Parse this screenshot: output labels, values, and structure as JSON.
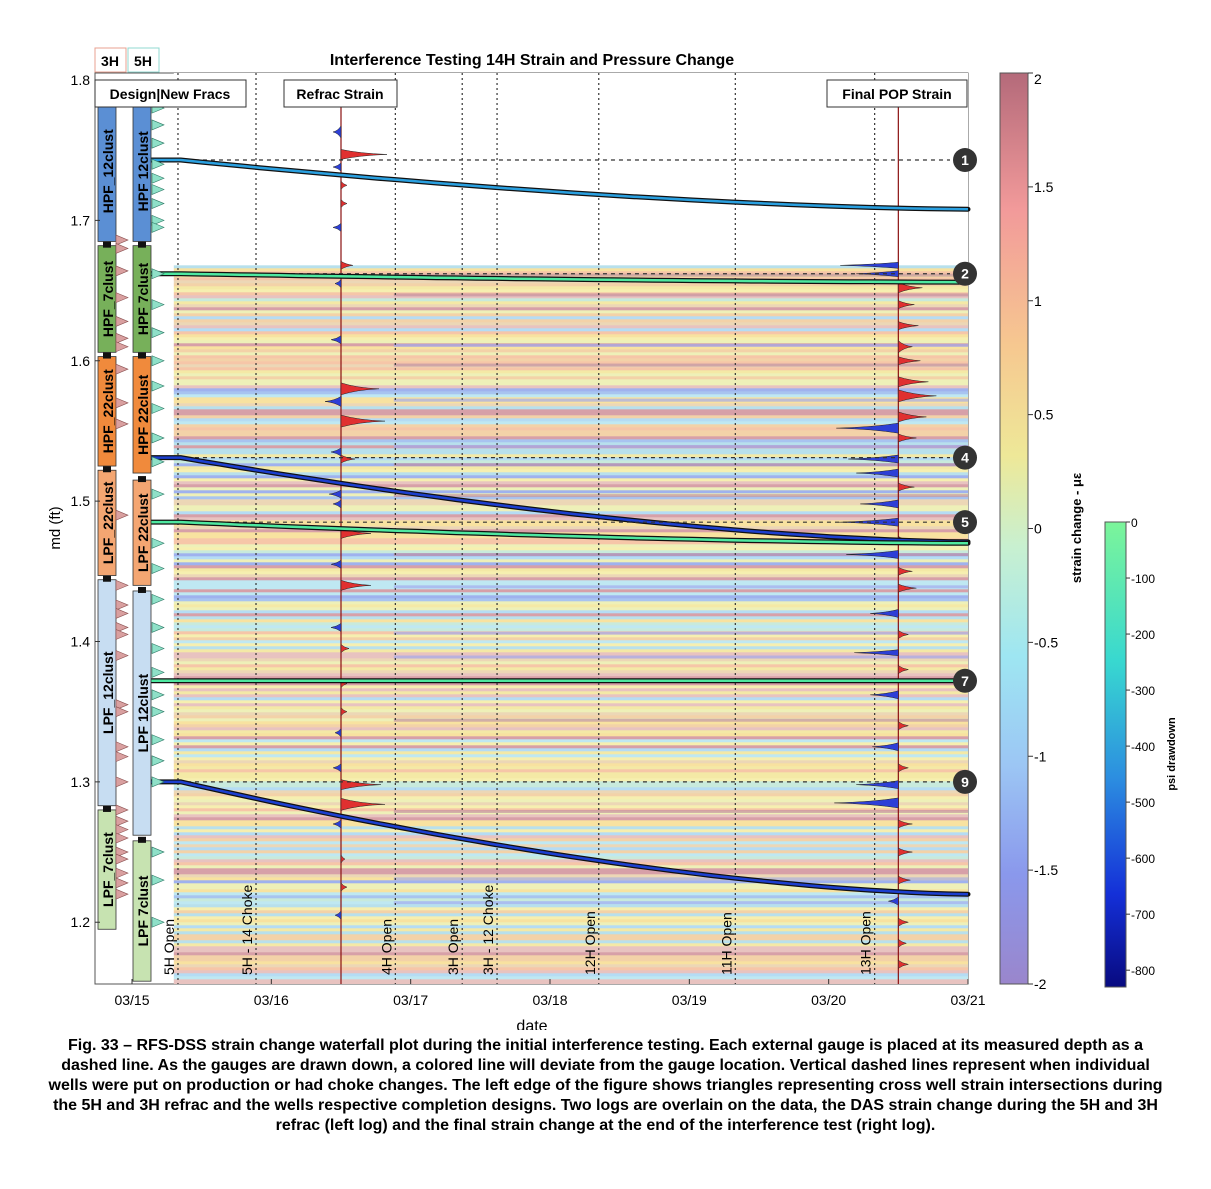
{
  "chart_data": {
    "type": "heatmap",
    "title": "Interference Testing 14H Strain and Pressure Change",
    "xlabel": "date",
    "ylabel": "md (ft)",
    "x_ticks": [
      "03/15",
      "03/16",
      "03/17",
      "03/18",
      "03/19",
      "03/20",
      "03/21"
    ],
    "y_ticks": [
      "1.2",
      "1.3",
      "1.4",
      "1.5",
      "1.6",
      "1.7",
      "1.8"
    ],
    "ylim": [
      1.156,
      1.805
    ],
    "grid": false,
    "well_headers": [
      "3H",
      "5H"
    ],
    "box_labels": {
      "design": "Design|New Fracs",
      "refrac": "Refrac Strain",
      "final": "Final POP Strain"
    },
    "events": [
      {
        "label": "5H Open",
        "day": 15.33
      },
      {
        "label": "5H - 14 Choke",
        "day": 15.89
      },
      {
        "label": "4H Open",
        "day": 16.89
      },
      {
        "label": "3H Open",
        "day": 17.37
      },
      {
        "label": "3H - 12 Choke",
        "day": 17.62
      },
      {
        "label": "12H Open",
        "day": 18.35
      },
      {
        "label": "11H Open",
        "day": 19.33
      },
      {
        "label": "13H Open",
        "day": 20.33
      }
    ],
    "gauges": [
      {
        "id": "1",
        "md": 1.743,
        "md_end": 1.708
      },
      {
        "id": "2",
        "md": 1.662,
        "md_end": 1.656
      },
      {
        "id": "4",
        "md": 1.531,
        "md_end": 1.471
      },
      {
        "id": "5",
        "md": 1.485,
        "md_end": 1.47
      },
      {
        "id": "7",
        "md": 1.372,
        "md_end": 1.372
      },
      {
        "id": "9",
        "md": 1.3,
        "md_end": 1.22
      }
    ],
    "strain_colorbar": {
      "label": "strain change - με",
      "ticks": [
        "2",
        "1.5",
        "1",
        "0.5",
        "0",
        "-0.5",
        "-1",
        "-1.5",
        "-2"
      ],
      "range": [
        -2,
        2
      ]
    },
    "pressure_colorbar": {
      "label": "psi drawdown",
      "ticks": [
        "0",
        "-100",
        "-200",
        "-300",
        "-400",
        "-500",
        "-600",
        "-700",
        "-800"
      ],
      "range": [
        -830,
        0
      ]
    },
    "design_3h": [
      {
        "label": "HPF_12clust",
        "top": 1.785,
        "bottom": 1.685,
        "color": "#5b8fd4"
      },
      {
        "label": "HPF_7clust",
        "top": 1.682,
        "bottom": 1.606,
        "color": "#77b05a"
      },
      {
        "label": "HPF_22clust",
        "top": 1.603,
        "bottom": 1.525,
        "color": "#f08a3c"
      },
      {
        "label": "LPF_22clust",
        "top": 1.522,
        "bottom": 1.447,
        "color": "#f4a672"
      },
      {
        "label": "LPF_12clust",
        "top": 1.444,
        "bottom": 1.283,
        "color": "#c7ddf2"
      },
      {
        "label": "LPF_7clust",
        "top": 1.28,
        "bottom": 1.195,
        "color": "#c7e3b1"
      }
    ],
    "design_5h": [
      {
        "label": "HPF 12clust",
        "top": 1.785,
        "bottom": 1.685,
        "color": "#5b8fd4"
      },
      {
        "label": "HPF 7clust",
        "top": 1.682,
        "bottom": 1.606,
        "color": "#77b05a"
      },
      {
        "label": "HPF 22clust",
        "top": 1.603,
        "bottom": 1.52,
        "color": "#f08a3c"
      },
      {
        "label": "LPF 22clust",
        "top": 1.515,
        "bottom": 1.44,
        "color": "#f4a672"
      },
      {
        "label": "LPF 12clust",
        "top": 1.436,
        "bottom": 1.262,
        "color": "#c7ddf2"
      },
      {
        "label": "LPF 7clust",
        "top": 1.258,
        "bottom": 1.158,
        "color": "#c7e3b1"
      }
    ]
  },
  "caption": "Fig. 33 – RFS-DSS strain change waterfall plot during the initial interference testing. Each external gauge is placed at its measured depth as a dashed line. As the gauges are drawn down, a colored line will deviate from the gauge location. Vertical dashed lines represent when individual wells were put on production or had choke changes. The left edge of the figure shows triangles representing cross well strain intersections during the 5H and 3H refrac and the wells respective completion designs. Two logs are overlain on the data, the DAS strain change during the 5H and 3H refrac (left log) and the final strain change at the end of the interference test (right log).",
  "colors": {
    "strain_pos": "#e03030",
    "strain_neg": "#2d3fd6",
    "heat_warm": "#f3e6a0",
    "heat_cool": "#bfe8f0"
  }
}
